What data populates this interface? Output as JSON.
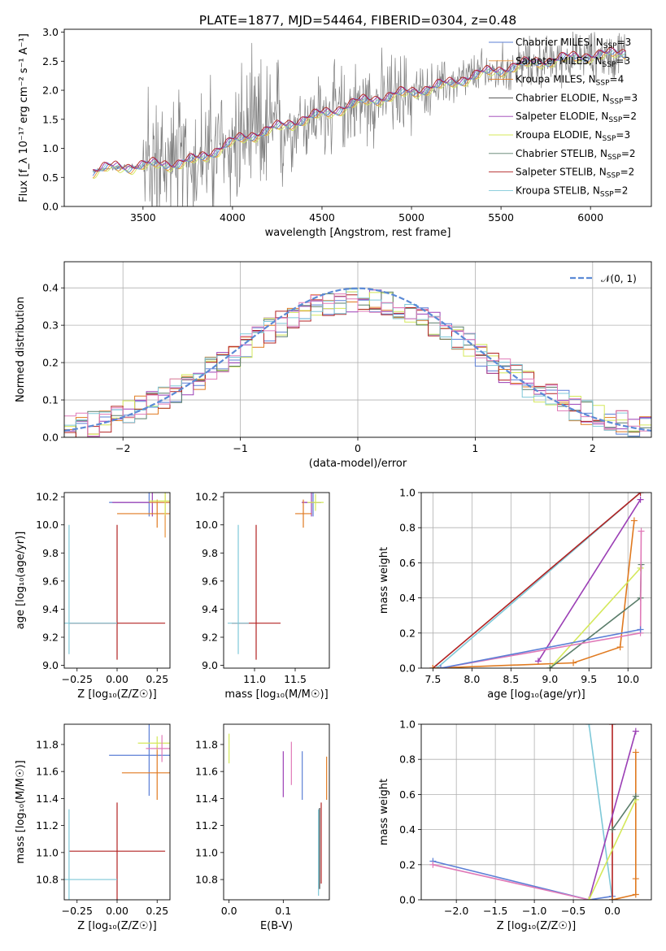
{
  "figure": {
    "title": "PLATE=1877, MJD=54464, FIBERID=0304, z=0.48",
    "colors": {
      "Chabrier MILES": "#5b7fd6",
      "Salpeter MILES": "#e8923a",
      "Kroupa MILES": "#e07a20",
      "Chabrier ELODIE": "#444444",
      "Salpeter ELODIE": "#9b3fb5",
      "Kroupa ELODIE": "#d4e85a",
      "Chabrier STELIB": "#5a7d6a",
      "Salpeter STELIB": "#b22222",
      "Kroupa STELIB": "#7ec8d8",
      "pink": "#e07ab8",
      "data": "#808080",
      "gaussian": "#5b8ad6"
    }
  },
  "chart_data": [
    {
      "id": "spectrum",
      "type": "line",
      "title": "PLATE=1877, MJD=54464, FIBERID=0304, z=0.48",
      "xlabel": "wavelength [Angstrom, rest frame]",
      "ylabel": "Flux [f_λ 10⁻¹⁷ erg cm⁻² s⁻¹ A⁻¹]",
      "xlim": [
        3060,
        6340
      ],
      "ylim": [
        0,
        3.05
      ],
      "xticks": [
        3500,
        4000,
        4500,
        5000,
        5500,
        6000
      ],
      "yticks": [
        0.0,
        0.5,
        1.0,
        1.5,
        2.0,
        2.5,
        3.0
      ],
      "legend_position": "right",
      "legend": [
        {
          "main": "Chabrier MILES, N",
          "sub": "SSP",
          "tail": "=3",
          "color_key": "Chabrier MILES"
        },
        {
          "main": "Salpeter MILES, N",
          "sub": "SSP",
          "tail": "=3",
          "color_key": "Salpeter MILES"
        },
        {
          "main": "Kroupa MILES, N",
          "sub": "SSP",
          "tail": "=4",
          "color_key": "Kroupa MILES"
        },
        {
          "main": "Chabrier ELODIE, N",
          "sub": "SSP",
          "tail": "=3",
          "color_key": "Chabrier ELODIE"
        },
        {
          "main": "Salpeter ELODIE, N",
          "sub": "SSP",
          "tail": "=2",
          "color_key": "Salpeter ELODIE"
        },
        {
          "main": "Kroupa ELODIE, N",
          "sub": "SSP",
          "tail": "=3",
          "color_key": "Kroupa ELODIE"
        },
        {
          "main": "Chabrier STELIB, N",
          "sub": "SSP",
          "tail": "=2",
          "color_key": "Chabrier STELIB"
        },
        {
          "main": "Salpeter STELIB, N",
          "sub": "SSP",
          "tail": "=2",
          "color_key": "Salpeter STELIB"
        },
        {
          "main": "Kroupa STELIB, N",
          "sub": "SSP",
          "tail": "=2",
          "color_key": "Kroupa STELIB"
        }
      ],
      "model_continuum": {
        "x": [
          3220,
          3300,
          3400,
          3500,
          3600,
          3700,
          3800,
          3900,
          4000,
          4100,
          4200,
          4300,
          4400,
          4500,
          4600,
          4700,
          4800,
          4900,
          5000,
          5100,
          5200,
          5300,
          5400,
          5500,
          5600,
          5700,
          5800,
          5900,
          6000,
          6100,
          6200
        ],
        "y": [
          0.6,
          0.65,
          0.68,
          0.7,
          0.72,
          0.74,
          0.8,
          0.95,
          1.1,
          1.22,
          1.3,
          1.4,
          1.5,
          1.58,
          1.68,
          1.78,
          1.85,
          1.9,
          1.97,
          2.03,
          2.1,
          2.2,
          2.28,
          2.35,
          2.42,
          2.48,
          2.52,
          2.55,
          2.6,
          2.6,
          2.65
        ]
      }
    },
    {
      "id": "residuals",
      "type": "line",
      "xlabel": "(data-model)/error",
      "ylabel": "Normed distribution",
      "xlim": [
        -2.5,
        2.5
      ],
      "ylim": [
        0,
        0.47
      ],
      "xticks": [
        -2,
        -1,
        0,
        1,
        2
      ],
      "yticks": [
        0.0,
        0.1,
        0.2,
        0.3,
        0.4
      ],
      "grid": true,
      "legend_position": "top-right",
      "legend": [
        {
          "label": "𝒩(0, 1)",
          "color_key": "gaussian"
        }
      ]
    },
    {
      "id": "age-vs-Z",
      "type": "scatter",
      "xlabel": "Z [log₁₀(Z/Z☉)]",
      "ylabel": "age  [log₁₀(age/yr)]",
      "xlim": [
        -0.33,
        0.33
      ],
      "ylim": [
        8.98,
        10.23
      ],
      "xticks": [
        -0.25,
        0.0,
        0.25
      ],
      "yticks": [
        9.0,
        9.2,
        9.4,
        9.6,
        9.8,
        10.0,
        10.2
      ],
      "points": [
        {
          "x": 0.0,
          "y": 9.3,
          "xerr": 0.3,
          "yerr": [
            0.26,
            0.7
          ],
          "color_key": "Salpeter STELIB"
        },
        {
          "x": -0.3,
          "y": 9.3,
          "xerr": 0.3,
          "yerr": [
            0.22,
            0.7
          ],
          "color_key": "Kroupa STELIB"
        },
        {
          "x": 0.2,
          "y": 10.16,
          "xerr": 0.25,
          "yerr": 0.1,
          "color_key": "Chabrier MILES"
        },
        {
          "x": 0.22,
          "y": 10.16,
          "xerr": 0.25,
          "yerr": 0.1,
          "color_key": "Salpeter ELODIE"
        },
        {
          "x": 0.25,
          "y": 10.08,
          "xerr": 0.25,
          "yerr": 0.1,
          "color_key": "Kroupa MILES"
        },
        {
          "x": 0.3,
          "y": 10.16,
          "xerr": 0.1,
          "yerr": 0.25,
          "color_key": "Salpeter MILES"
        },
        {
          "x": 0.3,
          "y": 10.17,
          "xerr": 0.1,
          "yerr": 0.1,
          "color_key": "Kroupa ELODIE"
        }
      ]
    },
    {
      "id": "age-vs-mass",
      "type": "scatter",
      "xlabel": "mass [log₁₀(M/M☉)]",
      "ylabel": "",
      "xlim": [
        10.62,
        11.92
      ],
      "ylim": [
        8.98,
        10.23
      ],
      "xticks": [
        11.0,
        11.5
      ],
      "yticks": [
        9.0,
        9.2,
        9.4,
        9.6,
        9.8,
        10.0,
        10.2
      ],
      "points": [
        {
          "x": 11.02,
          "y": 9.3,
          "xerr": 0.3,
          "yerr": [
            0.26,
            0.7
          ],
          "color_key": "Salpeter STELIB"
        },
        {
          "x": 10.8,
          "y": 9.3,
          "xerr": 0.13,
          "yerr": [
            0.22,
            0.7
          ],
          "color_key": "Kroupa STELIB"
        },
        {
          "x": 11.72,
          "y": 10.16,
          "xerr": 0.1,
          "yerr": 0.1,
          "color_key": "Chabrier MILES"
        },
        {
          "x": 11.7,
          "y": 10.16,
          "xerr": 0.12,
          "yerr": 0.1,
          "color_key": "Salpeter ELODIE"
        },
        {
          "x": 11.6,
          "y": 10.08,
          "xerr": 0.1,
          "yerr": 0.1,
          "color_key": "Kroupa MILES"
        },
        {
          "x": 11.75,
          "y": 10.16,
          "xerr": 0.1,
          "yerr": 0.06,
          "color_key": "Kroupa ELODIE"
        }
      ]
    },
    {
      "id": "massweight-vs-age",
      "type": "line",
      "xlabel": "age  [log₁₀(age/yr)]",
      "ylabel": "mass weight",
      "xlim": [
        7.35,
        10.3
      ],
      "ylim": [
        0,
        1.0
      ],
      "xticks": [
        7.5,
        8.0,
        8.5,
        9.0,
        9.5,
        10.0
      ],
      "yticks": [
        0.0,
        0.2,
        0.4,
        0.6,
        0.8,
        1.0
      ],
      "grid": true,
      "series": [
        {
          "x": [
            7.55,
            10.16
          ],
          "y": [
            0.0,
            1.0
          ],
          "color_key": "Kroupa STELIB"
        },
        {
          "x": [
            7.5,
            10.16
          ],
          "y": [
            0.0,
            1.0
          ],
          "color_key": "Salpeter STELIB"
        },
        {
          "x": [
            8.85,
            10.16
          ],
          "y": [
            0.04,
            0.96
          ],
          "color_key": "Salpeter ELODIE"
        },
        {
          "x": [
            7.5,
            9.3,
            9.9,
            10.08
          ],
          "y": [
            0.0,
            0.03,
            0.12,
            0.84
          ],
          "color_key": "Kroupa MILES"
        },
        {
          "x": [
            9.0,
            10.16
          ],
          "y": [
            0.0,
            0.57
          ],
          "color_key": "Kroupa ELODIE"
        },
        {
          "x": [
            9.0,
            10.16,
            10.17
          ],
          "y": [
            0.0,
            0.4,
            0.59
          ],
          "color_key": "Chabrier STELIB"
        },
        {
          "x": [
            7.6,
            10.16,
            10.17
          ],
          "y": [
            0.0,
            0.2,
            0.78
          ],
          "color_key": "pink"
        },
        {
          "x": [
            7.6,
            10.16
          ],
          "y": [
            0.0,
            0.22
          ],
          "color_key": "Chabrier MILES"
        }
      ]
    },
    {
      "id": "mass-vs-Z",
      "type": "scatter",
      "xlabel": "Z [log₁₀(Z/Z☉)]",
      "ylabel": "mass [log₁₀(M/M☉)]",
      "xlim": [
        -0.33,
        0.33
      ],
      "ylim": [
        10.65,
        11.95
      ],
      "xticks": [
        -0.25,
        0.0,
        0.25
      ],
      "yticks": [
        10.8,
        11.0,
        11.2,
        11.4,
        11.6,
        11.8
      ],
      "points": [
        {
          "x": 0.0,
          "y": 11.01,
          "xerr": 0.3,
          "yerr": 0.36,
          "color_key": "Salpeter STELIB"
        },
        {
          "x": -0.3,
          "y": 10.8,
          "xerr": 0.3,
          "yerr": 0.52,
          "color_key": "Kroupa STELIB"
        },
        {
          "x": 0.2,
          "y": 11.72,
          "xerr": 0.25,
          "yerr": 0.3,
          "color_key": "Chabrier MILES"
        },
        {
          "x": 0.25,
          "y": 11.59,
          "xerr": 0.22,
          "yerr": 0.2,
          "color_key": "Kroupa MILES"
        },
        {
          "x": 0.25,
          "y": 11.81,
          "xerr": 0.12,
          "yerr": 0.05,
          "color_key": "Kroupa ELODIE"
        },
        {
          "x": 0.28,
          "y": 11.77,
          "xerr": 0.1,
          "yerr": 0.1,
          "color_key": "pink"
        }
      ]
    },
    {
      "id": "mass-vs-ebv",
      "type": "scatter",
      "xlabel": "E(B-V)",
      "ylabel": "",
      "xlim": [
        -0.01,
        0.185
      ],
      "ylim": [
        10.65,
        11.95
      ],
      "xticks": [
        0.0,
        0.1
      ],
      "yticks": [
        10.8,
        11.0,
        11.2,
        11.4,
        11.6,
        11.8
      ],
      "points": [
        {
          "x": 0.0,
          "y": 11.77,
          "yerr": 0.11,
          "color_key": "Kroupa ELODIE"
        },
        {
          "x": 0.1,
          "y": 11.58,
          "yerr": 0.17,
          "color_key": "Salpeter ELODIE"
        },
        {
          "x": 0.115,
          "y": 11.66,
          "yerr": 0.16,
          "color_key": "pink"
        },
        {
          "x": 0.135,
          "y": 11.57,
          "yerr": 0.18,
          "color_key": "Chabrier MILES"
        },
        {
          "x": 0.165,
          "y": 11.0,
          "yerr": 0.32,
          "color_key": "Kroupa STELIB"
        },
        {
          "x": 0.167,
          "y": 11.03,
          "yerr": 0.3,
          "color_key": "Chabrier ELODIE"
        },
        {
          "x": 0.17,
          "y": 11.07,
          "yerr": 0.3,
          "color_key": "Salpeter STELIB"
        },
        {
          "x": 0.18,
          "y": 11.55,
          "yerr": 0.16,
          "color_key": "Kroupa MILES"
        }
      ]
    },
    {
      "id": "massweight-vs-Z",
      "type": "line",
      "xlabel": "Z [log₁₀(Z/Z☉)]",
      "ylabel": "mass weight",
      "xlim": [
        -2.45,
        0.5
      ],
      "ylim": [
        0,
        1.0
      ],
      "xticks": [
        -2.0,
        -1.5,
        -1.0,
        -0.5,
        0.0
      ],
      "yticks": [
        0.0,
        0.2,
        0.4,
        0.6,
        0.8,
        1.0
      ],
      "grid": true,
      "series": [
        {
          "x": [
            -2.3,
            -0.3,
            0.0
          ],
          "y": [
            0.22,
            0.0,
            0.02
          ],
          "color_key": "Chabrier MILES"
        },
        {
          "x": [
            -2.3,
            -0.3
          ],
          "y": [
            0.2,
            0.0
          ],
          "color_key": "pink"
        },
        {
          "x": [
            -0.3,
            0.0
          ],
          "y": [
            1.0,
            0.0
          ],
          "color_key": "Kroupa STELIB"
        },
        {
          "x": [
            0.0,
            0.0
          ],
          "y": [
            0.0,
            1.0
          ],
          "color_key": "Salpeter STELIB"
        },
        {
          "x": [
            -0.3,
            0.3
          ],
          "y": [
            0.0,
            0.96
          ],
          "color_key": "Salpeter ELODIE"
        },
        {
          "x": [
            0.0,
            0.3,
            0.3,
            0.3
          ],
          "y": [
            0.0,
            0.03,
            0.12,
            0.84
          ],
          "color_key": "Kroupa MILES"
        },
        {
          "x": [
            -0.3,
            0.3
          ],
          "y": [
            0.0,
            0.57
          ],
          "color_key": "Kroupa ELODIE"
        },
        {
          "x": [
            0.0,
            0.3
          ],
          "y": [
            0.4,
            0.59
          ],
          "color_key": "Chabrier STELIB"
        }
      ]
    }
  ]
}
